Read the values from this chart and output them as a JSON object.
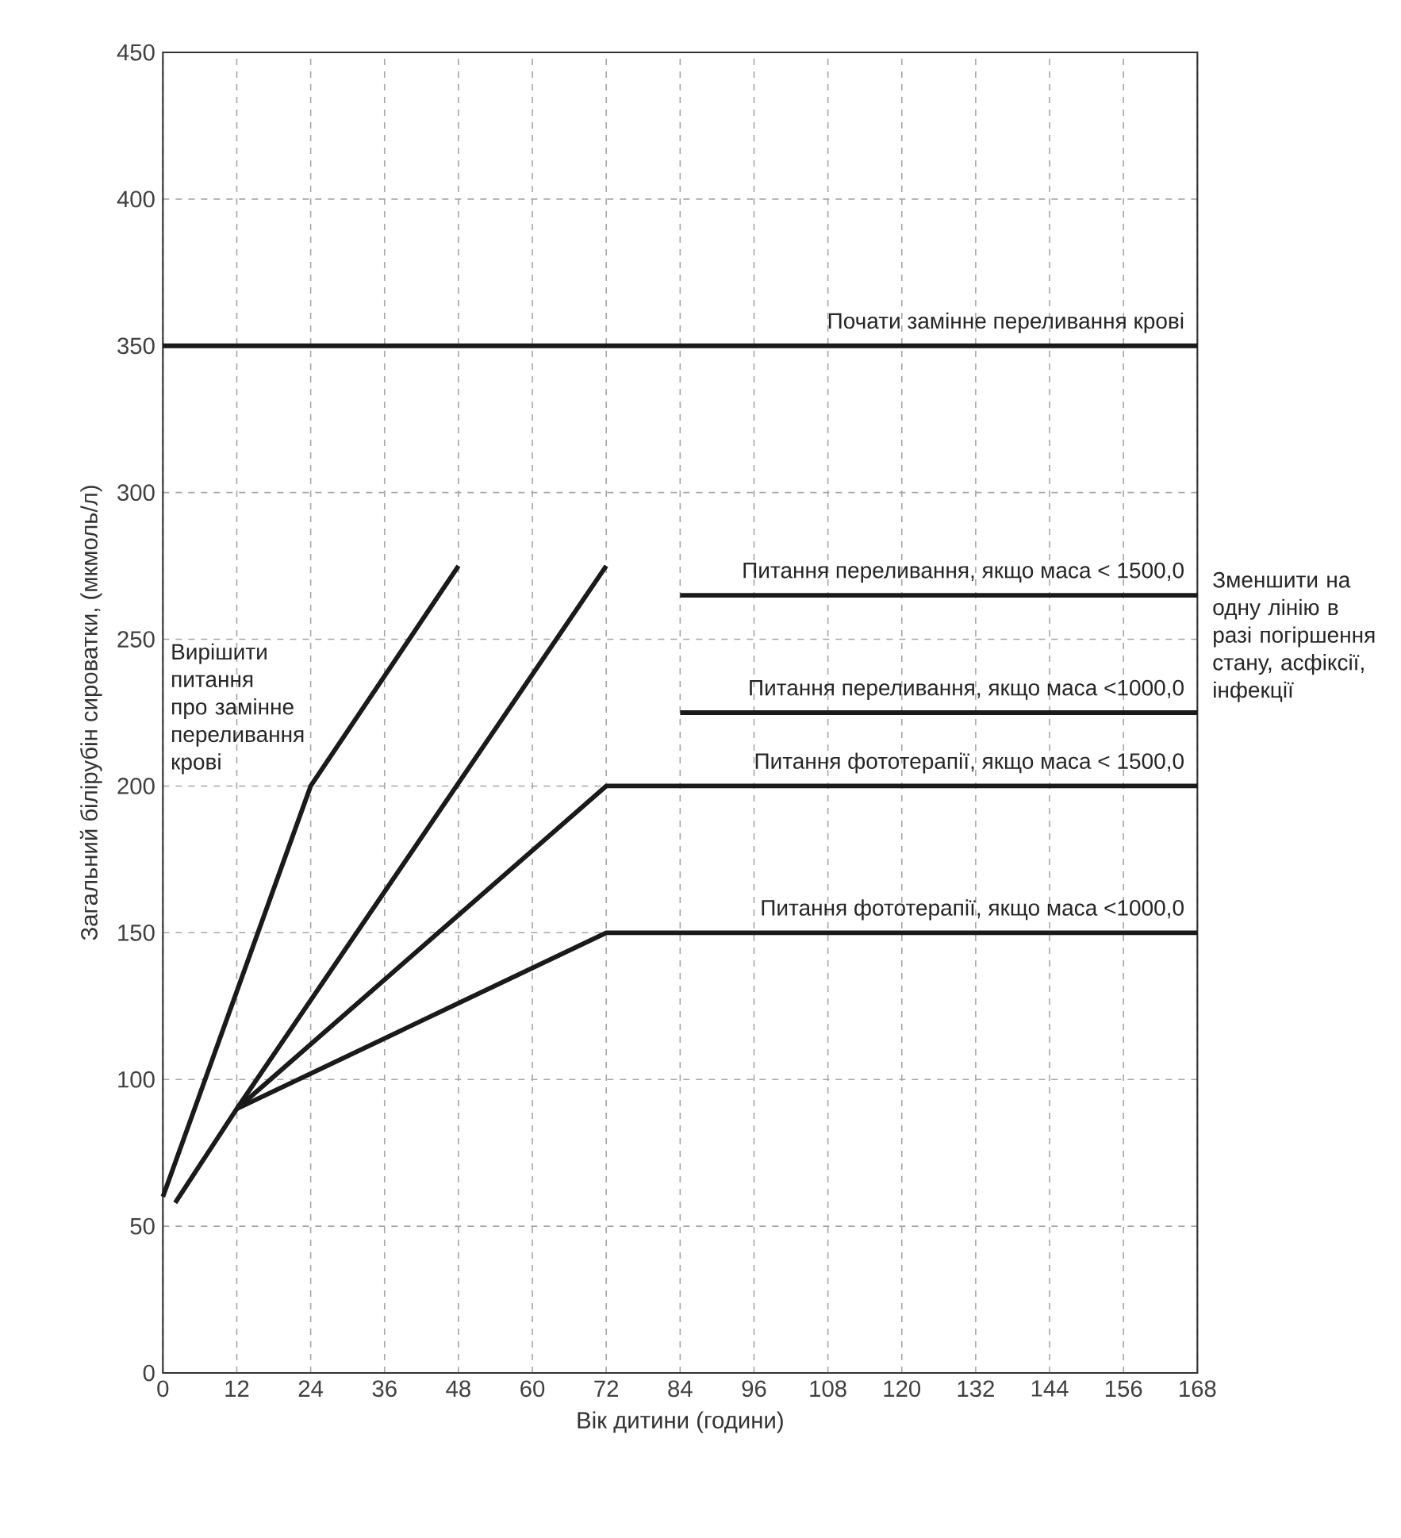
{
  "chart_data": {
    "type": "line",
    "xlabel": "Вік дитини (години)",
    "ylabel": "Загальний білірубін сироватки, (мкмоль/л)",
    "xlim": [
      0,
      168
    ],
    "xticks": [
      0,
      12,
      24,
      36,
      48,
      60,
      72,
      84,
      96,
      108,
      120,
      132,
      144,
      156,
      168
    ],
    "ylim": [
      0,
      450
    ],
    "yticks": [
      0,
      50,
      100,
      150,
      200,
      250,
      300,
      350,
      400,
      450
    ],
    "grid": true,
    "marker": "none",
    "line_style": "solid",
    "series": [
      {
        "name": "Почати замінне переливання крові",
        "color": "#1a1a1a",
        "x": [
          0,
          168
        ],
        "values": [
          350,
          350
        ]
      },
      {
        "color": "#1a1a1a",
        "x": [
          0,
          24,
          48
        ],
        "values": [
          60,
          200,
          275
        ]
      },
      {
        "color": "#1a1a1a",
        "x": [
          2,
          12,
          72
        ],
        "values": [
          58,
          90,
          275
        ]
      },
      {
        "name": "Питання переливання, якщо маса < 1500,0",
        "color": "#1a1a1a",
        "x": [
          84,
          168
        ],
        "values": [
          265,
          265
        ]
      },
      {
        "name": "Питання переливання, якщо маса <1000,0",
        "color": "#1a1a1a",
        "x": [
          84,
          168
        ],
        "values": [
          225,
          225
        ]
      },
      {
        "name": "Питання фототерапії, якщо маса < 1500,0",
        "color": "#1a1a1a",
        "x": [
          12,
          72,
          168
        ],
        "values": [
          90,
          200,
          200
        ]
      },
      {
        "name": "Питання фототерапії, якщо маса <1000,0",
        "color": "#1a1a1a",
        "x": [
          12,
          72,
          168
        ],
        "values": [
          90,
          150,
          150
        ]
      }
    ],
    "annotations": [
      "Вирішити питання про замінне переливання крові",
      "Зменшити на одну лінію в разі погіршення стану, асфіксії, інфекції"
    ]
  }
}
